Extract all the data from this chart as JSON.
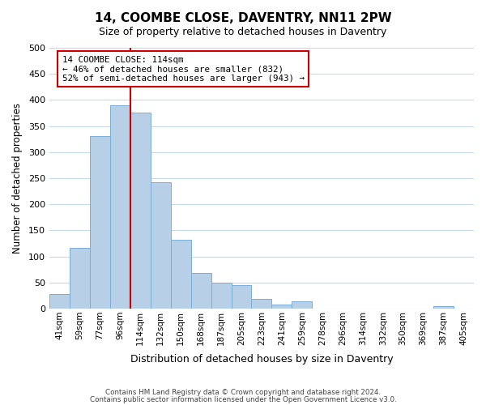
{
  "title": "14, COOMBE CLOSE, DAVENTRY, NN11 2PW",
  "subtitle": "Size of property relative to detached houses in Daventry",
  "xlabel": "Distribution of detached houses by size in Daventry",
  "ylabel": "Number of detached properties",
  "bar_color": "#b8cfe8",
  "bar_edge_color": "#7aaed4",
  "bins": [
    "41sqm",
    "59sqm",
    "77sqm",
    "96sqm",
    "114sqm",
    "132sqm",
    "150sqm",
    "168sqm",
    "187sqm",
    "205sqm",
    "223sqm",
    "241sqm",
    "259sqm",
    "278sqm",
    "296sqm",
    "314sqm",
    "332sqm",
    "350sqm",
    "369sqm",
    "387sqm",
    "405sqm"
  ],
  "values": [
    28,
    117,
    330,
    390,
    376,
    242,
    132,
    68,
    50,
    45,
    18,
    7,
    14,
    0,
    0,
    0,
    0,
    0,
    0,
    5,
    0
  ],
  "ylim": [
    0,
    500
  ],
  "yticks": [
    0,
    50,
    100,
    150,
    200,
    250,
    300,
    350,
    400,
    450,
    500
  ],
  "vline_x_index": 4,
  "vline_color": "#cc0000",
  "annotation_title": "14 COOMBE CLOSE: 114sqm",
  "annotation_line1": "← 46% of detached houses are smaller (832)",
  "annotation_line2": "52% of semi-detached houses are larger (943) →",
  "annotation_box_color": "#ffffff",
  "annotation_box_edge": "#cc0000",
  "footer_line1": "Contains HM Land Registry data © Crown copyright and database right 2024.",
  "footer_line2": "Contains public sector information licensed under the Open Government Licence v3.0.",
  "background_color": "#ffffff",
  "grid_color": "#c8d8e8"
}
